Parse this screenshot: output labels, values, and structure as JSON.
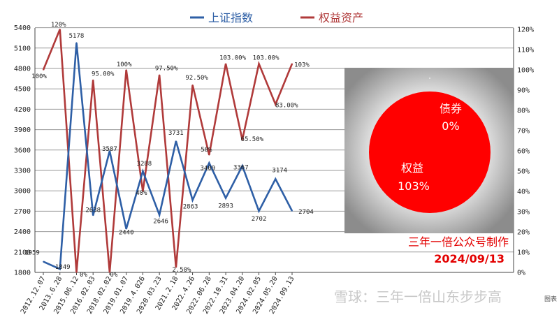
{
  "chart_data": {
    "type": "line",
    "categories": [
      "2012.12.07",
      "2013.6.28",
      "2015.06.12",
      "2016.02.03",
      "2018.02.02",
      "2019.01.07",
      "2019.4.026",
      "2020.03.23",
      "2021.2.18",
      "2022.4.26",
      "2022.06.28",
      "2022.10.31",
      "2023.04.20",
      "2024.02.05",
      "2024.05.20",
      "2024.09.13"
    ],
    "series": [
      {
        "name": "上证指数",
        "axis": "left",
        "color": "#2e5fa6",
        "values": [
          1959,
          1849,
          5178,
          2638,
          3587,
          2440,
          3288,
          2646,
          3731,
          2863,
          3409,
          2893,
          3367,
          2702,
          3174,
          2704
        ],
        "labels": [
          "1959",
          "1849",
          "5178",
          "2638",
          "3587",
          "2440",
          "3288",
          "2646",
          "3731",
          "2863",
          "3409",
          "2893",
          "3367",
          "2702",
          "3174",
          "2704"
        ]
      },
      {
        "name": "权益资产",
        "axis": "right",
        "color": "#b03a3a",
        "values": [
          100,
          120,
          0,
          95,
          0,
          100,
          40,
          97.5,
          2.5,
          92.5,
          58,
          103,
          65.5,
          103,
          83,
          103
        ],
        "labels": [
          "100%",
          "120%",
          "0%",
          "95.00%",
          "0%",
          "100%",
          "40%",
          "97.50%",
          "2.50%",
          "92.50%",
          "58%",
          "103.00%",
          "65.50%",
          "103.00%",
          "83.00%",
          "103%"
        ]
      }
    ],
    "ylim": [
      1800,
      5500
    ],
    "yticks": [
      "1800",
      "2100",
      "2400",
      "2700",
      "3000",
      "3300",
      "3600",
      "3900",
      "4200",
      "4500",
      "4800",
      "5100",
      "5400"
    ],
    "y2lim": [
      0,
      125
    ],
    "y2ticks": [
      "0%",
      "10%",
      "20%",
      "30%",
      "40%",
      "50%",
      "60%",
      "70%",
      "80%",
      "90%",
      "100%",
      "110%",
      "120%"
    ],
    "grid": true,
    "legend": "top-center"
  },
  "pie": {
    "slices": [
      {
        "label": "债券",
        "value_text": "0%",
        "value": 0
      },
      {
        "label": "权益",
        "value_text": "103%",
        "value": 103
      }
    ],
    "color": "#ff0000"
  },
  "credit": {
    "line1": "三年一倍公众号制作",
    "line2": "2024/09/13"
  },
  "watermark": "雪球：三年一倍山东步步高",
  "corner_text": "图表"
}
